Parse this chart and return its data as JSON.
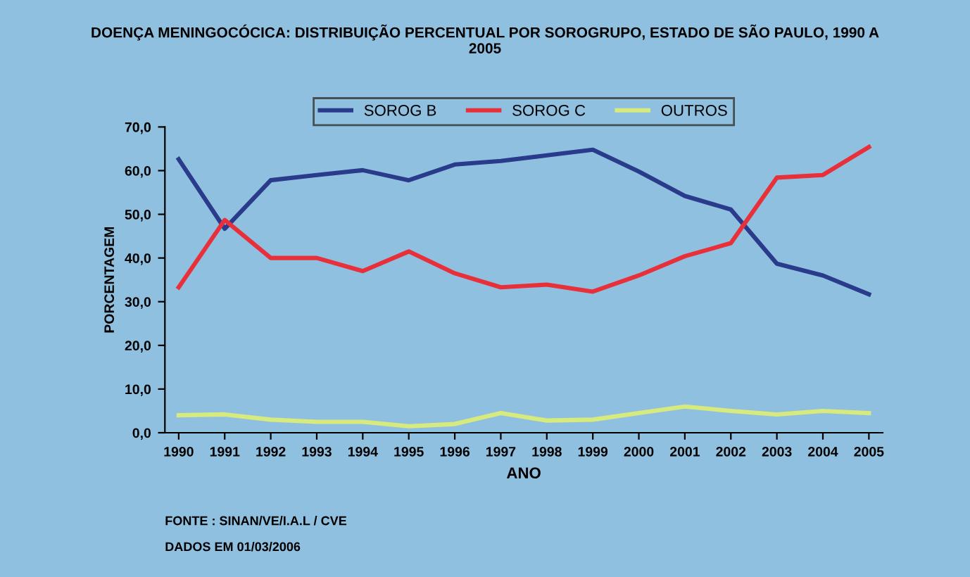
{
  "chart_data": {
    "type": "line",
    "title": "DOENÇA MENINGOCÓCICA: DISTRIBUIÇÃO PERCENTUAL POR SOROGRUPO, ESTADO DE SÃO PAULO, 1990 A\n2005",
    "xlabel": "ANO",
    "ylabel": "PORCENTAGEM",
    "categories": [
      "1990",
      "1991",
      "1992",
      "1993",
      "1994",
      "1995",
      "1996",
      "1997",
      "1998",
      "1999",
      "2000",
      "2001",
      "2002",
      "2003",
      "2004",
      "2005"
    ],
    "series": [
      {
        "name": "SOROG B",
        "color": "#2a3b8c",
        "values": [
          62.6,
          46.7,
          57.8,
          59.0,
          60.1,
          57.8,
          61.4,
          62.2,
          63.5,
          64.8,
          59.8,
          54.2,
          51.1,
          38.7,
          36.0,
          31.7
        ]
      },
      {
        "name": "SOROG C",
        "color": "#e8303a",
        "values": [
          33.3,
          48.7,
          40.0,
          40.0,
          37.0,
          41.5,
          36.5,
          33.3,
          33.9,
          32.3,
          36.0,
          40.4,
          43.4,
          58.4,
          59.0,
          65.4
        ]
      },
      {
        "name": "OUTROS",
        "color": "#d6ea7e",
        "values": [
          4.0,
          4.2,
          3.0,
          2.5,
          2.5,
          1.5,
          2.0,
          4.5,
          2.8,
          3.0,
          4.5,
          6.0,
          5.0,
          4.2,
          5.0,
          4.5
        ]
      }
    ],
    "ylim": [
      0,
      70
    ],
    "yticks": [
      {
        "value": 0,
        "label": "0,0"
      },
      {
        "value": 10,
        "label": "10,0"
      },
      {
        "value": 20,
        "label": "20,0"
      },
      {
        "value": 30,
        "label": "30,0"
      },
      {
        "value": 40,
        "label": "40,0"
      },
      {
        "value": 50,
        "label": "50,0"
      },
      {
        "value": 60,
        "label": "60,0"
      },
      {
        "value": 70,
        "label": "70,0"
      }
    ],
    "legend": "top",
    "grid": false,
    "annotations": [
      "FONTE : SINAN/VE/I.A.L / CVE",
      "DADOS EM 01/03/2006"
    ]
  }
}
